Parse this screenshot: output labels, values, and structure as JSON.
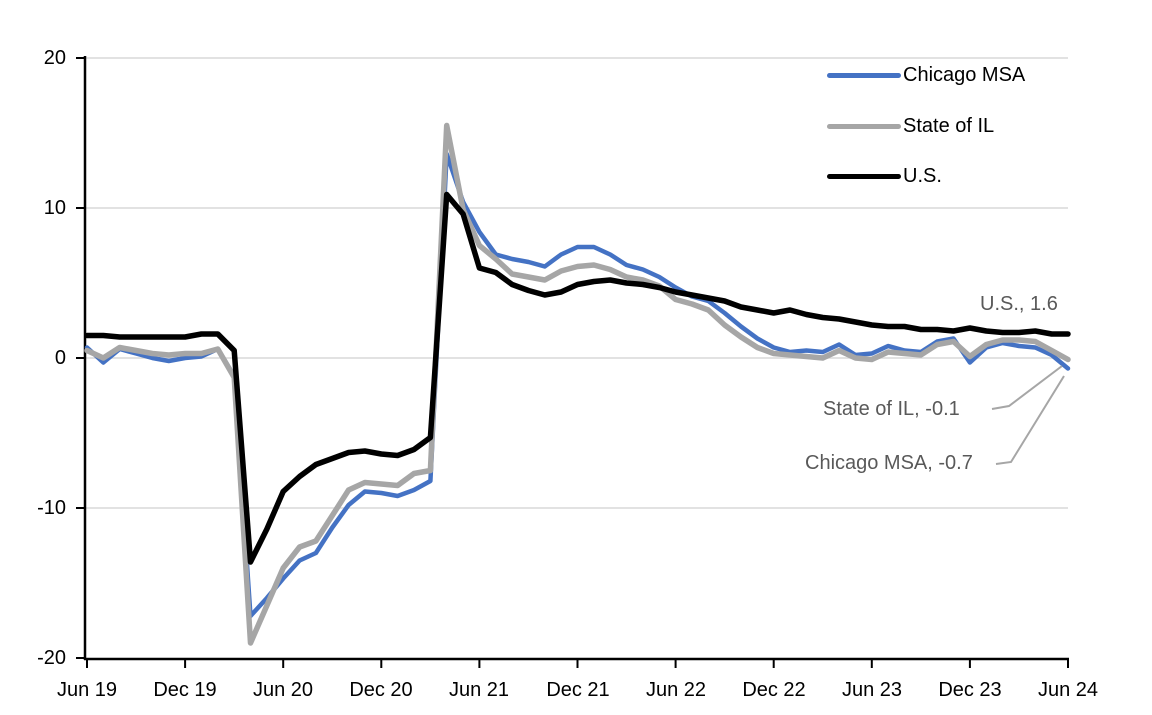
{
  "chart_data": {
    "type": "line",
    "title": "",
    "x_start": "Jun 2019",
    "x_end": "Jun 2024",
    "x_frequency": "monthly",
    "xtick_labels": [
      "Jun 19",
      "Dec 19",
      "Jun 20",
      "Dec 20",
      "Jun 21",
      "Dec 21",
      "Jun 22",
      "Dec 22",
      "Jun 23",
      "Dec 23",
      "Jun 24"
    ],
    "ytick_labels": [
      "20",
      "10",
      "0",
      "-10",
      "-20"
    ],
    "yticks": [
      20,
      10,
      0,
      -10,
      -20
    ],
    "ylim": [
      -20,
      20
    ],
    "grid": "horizontal",
    "gridline_color": "#D9D9D9",
    "legend_position": "top-right",
    "series": [
      {
        "name": "Chicago MSA",
        "color": "#4472C4",
        "end_value": -0.7,
        "values": [
          0.7,
          -0.3,
          0.6,
          0.3,
          0.0,
          -0.2,
          0.0,
          0.1,
          0.6,
          -1.2,
          -17.2,
          -16.0,
          -14.7,
          -13.5,
          -13.0,
          -11.3,
          -9.8,
          -8.9,
          -9.0,
          -9.2,
          -8.8,
          -8.2,
          13.6,
          10.4,
          8.4,
          6.9,
          6.6,
          6.4,
          6.1,
          6.9,
          7.4,
          7.4,
          6.9,
          6.2,
          5.9,
          5.4,
          4.7,
          4.1,
          3.8,
          3.0,
          2.1,
          1.3,
          0.7,
          0.4,
          0.5,
          0.4,
          0.9,
          0.2,
          0.3,
          0.8,
          0.5,
          0.4,
          1.1,
          1.3,
          -0.3,
          0.7,
          1.0,
          0.8,
          0.7,
          0.2,
          -0.7
        ]
      },
      {
        "name": "State of IL",
        "color": "#A6A6A6",
        "end_value": -0.1,
        "values": [
          0.5,
          0.0,
          0.7,
          0.5,
          0.3,
          0.2,
          0.3,
          0.3,
          0.6,
          -1.3,
          -19.0,
          -16.5,
          -14.0,
          -12.6,
          -12.2,
          -10.5,
          -8.8,
          -8.3,
          -8.4,
          -8.5,
          -7.7,
          -7.5,
          15.5,
          9.9,
          7.5,
          6.6,
          5.6,
          5.4,
          5.2,
          5.8,
          6.1,
          6.2,
          5.9,
          5.4,
          5.2,
          4.8,
          3.9,
          3.6,
          3.2,
          2.2,
          1.4,
          0.7,
          0.3,
          0.2,
          0.1,
          0.0,
          0.5,
          0.0,
          -0.1,
          0.4,
          0.3,
          0.2,
          0.9,
          1.1,
          0.1,
          0.9,
          1.2,
          1.2,
          1.1,
          0.5,
          -0.1
        ]
      },
      {
        "name": "U.S.",
        "color": "#000000",
        "end_value": 1.6,
        "values": [
          1.5,
          1.5,
          1.4,
          1.4,
          1.4,
          1.4,
          1.4,
          1.6,
          1.6,
          0.5,
          -13.6,
          -11.4,
          -8.9,
          -7.9,
          -7.1,
          -6.7,
          -6.3,
          -6.2,
          -6.4,
          -6.5,
          -6.1,
          -5.3,
          10.9,
          9.6,
          6.0,
          5.7,
          4.9,
          4.5,
          4.2,
          4.4,
          4.9,
          5.1,
          5.2,
          5.0,
          4.9,
          4.7,
          4.4,
          4.2,
          4.0,
          3.8,
          3.4,
          3.2,
          3.0,
          3.2,
          2.9,
          2.7,
          2.6,
          2.4,
          2.2,
          2.1,
          2.1,
          1.9,
          1.9,
          1.8,
          2.0,
          1.8,
          1.7,
          1.7,
          1.8,
          1.6,
          1.6
        ]
      }
    ],
    "annotations": [
      {
        "text": "U.S., 1.6"
      },
      {
        "text": "State of IL, -0.1"
      },
      {
        "text": "Chicago MSA, -0.7"
      }
    ]
  }
}
